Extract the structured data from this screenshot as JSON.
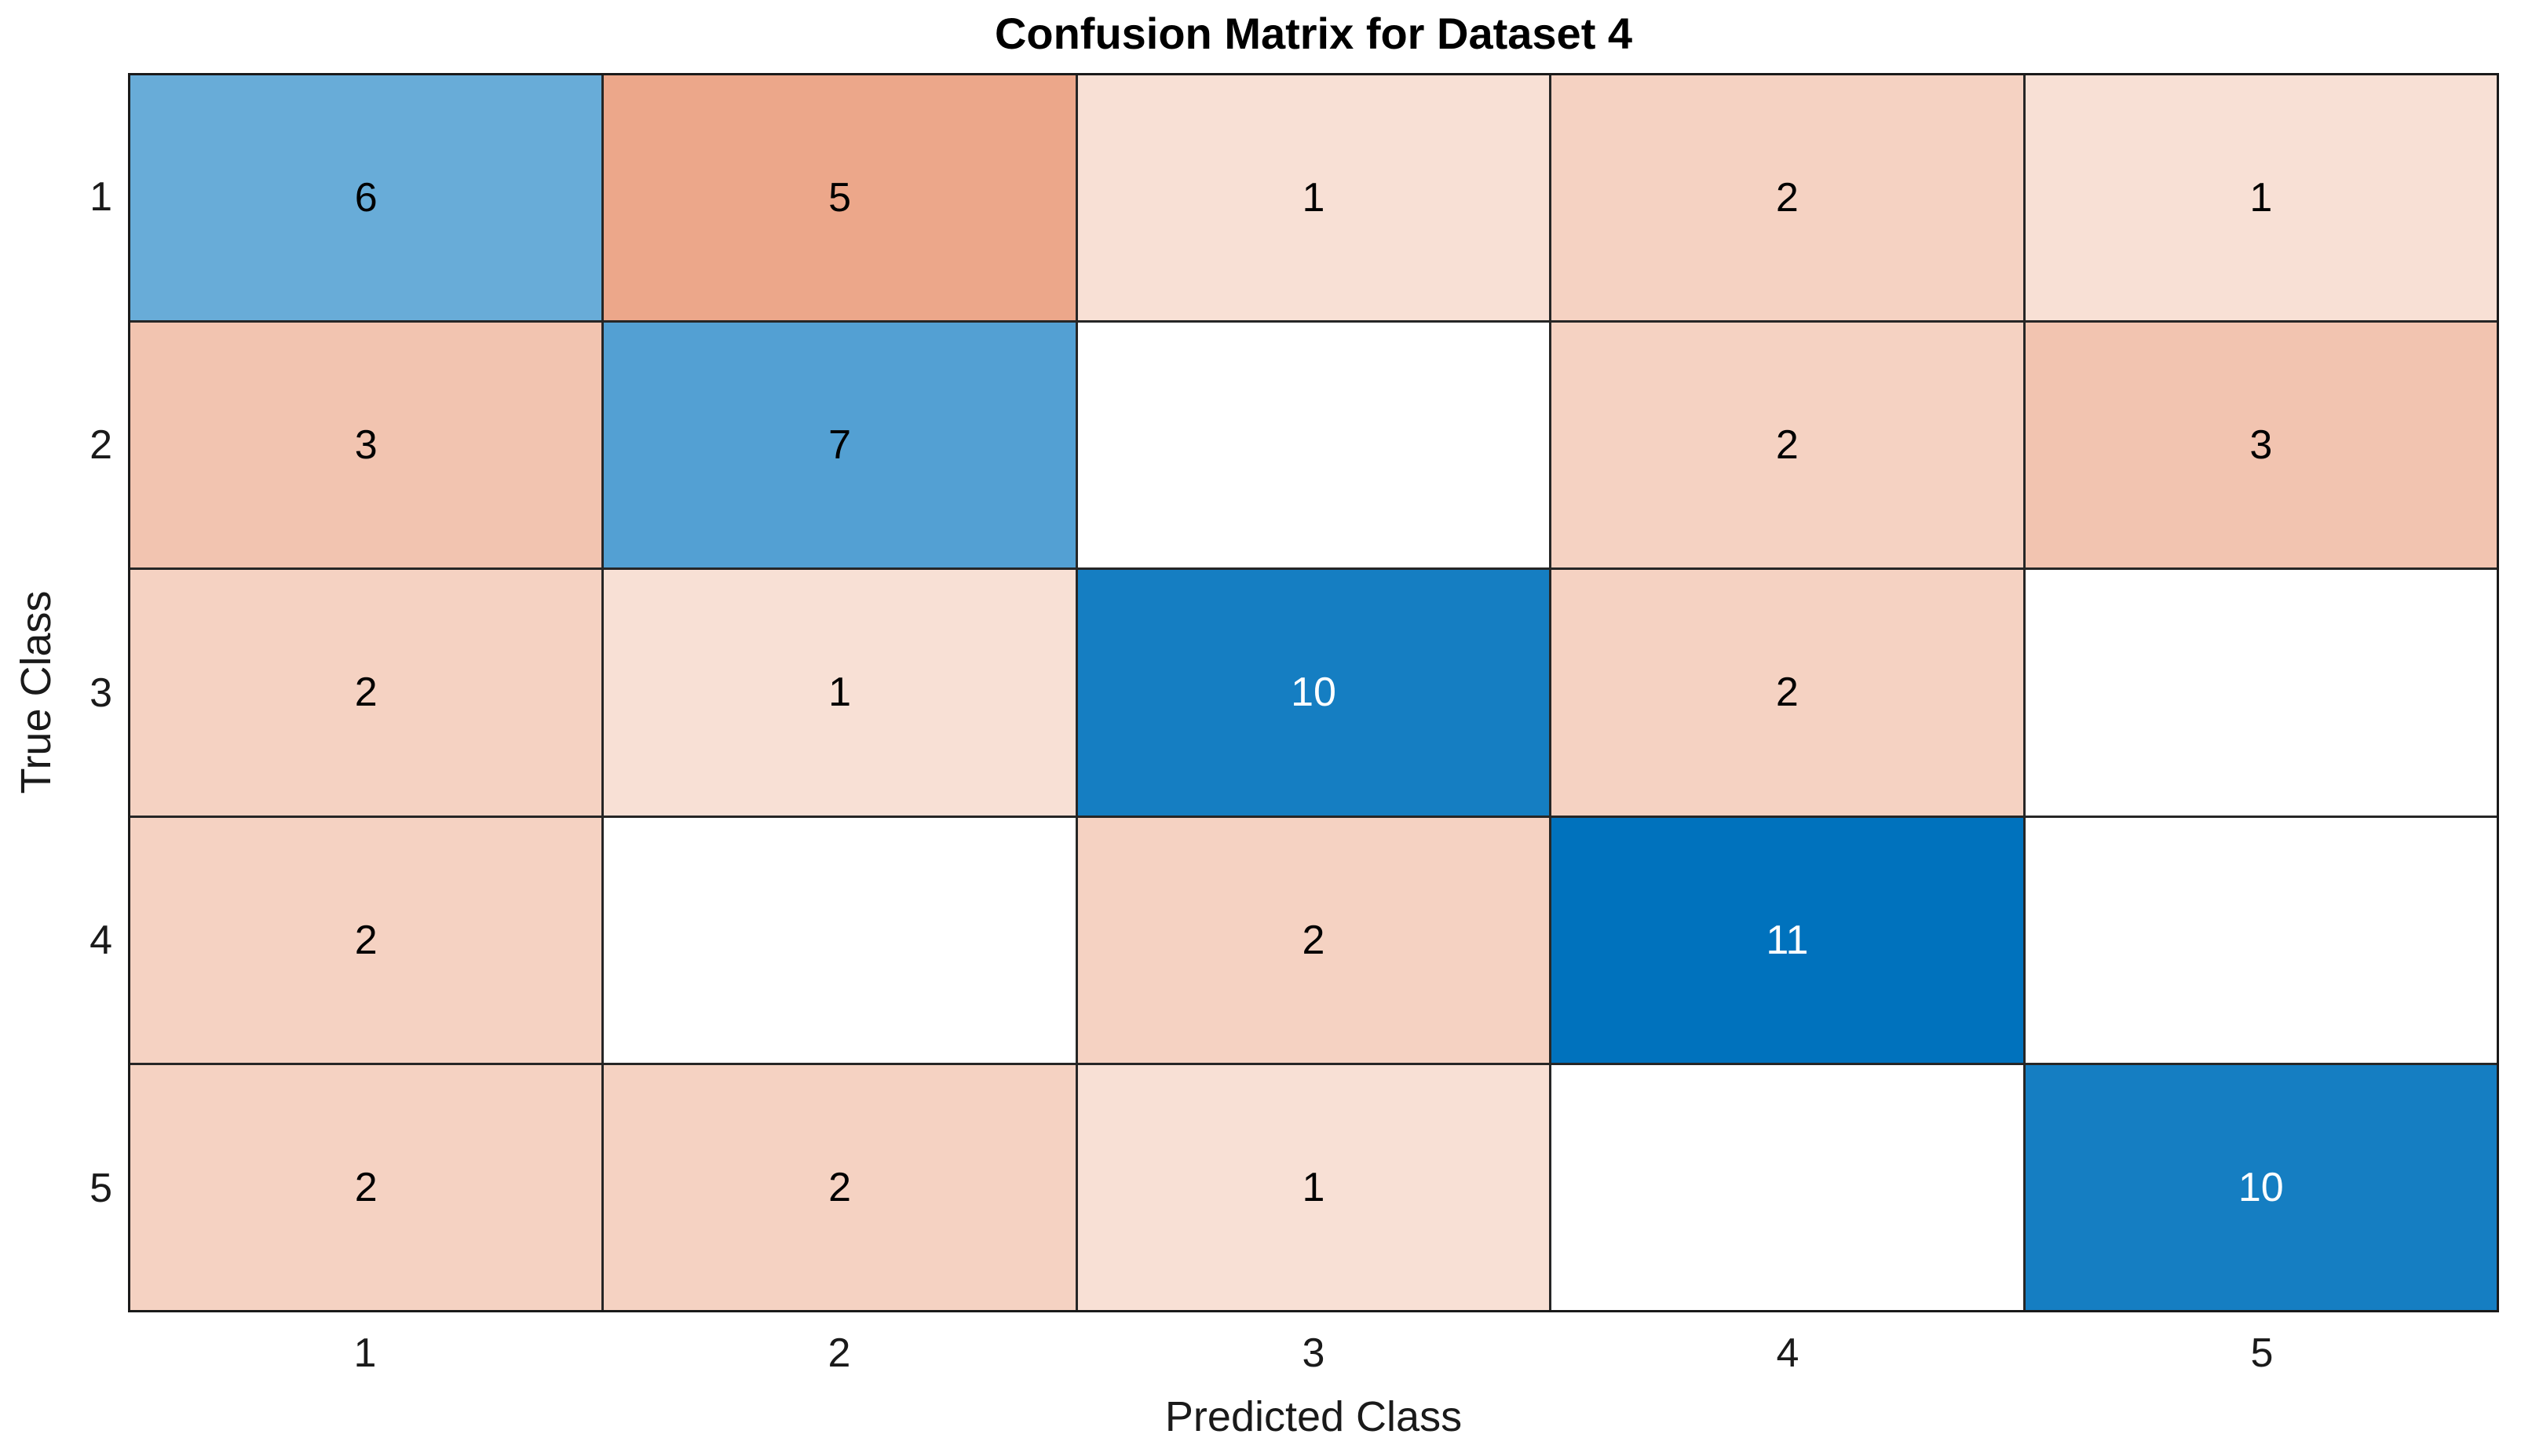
{
  "chart_data": {
    "type": "heatmap",
    "title": "Confusion Matrix for Dataset 4",
    "xlabel": "Predicted Class",
    "ylabel": "True Class",
    "x_tick_labels": [
      "1",
      "2",
      "3",
      "4",
      "5"
    ],
    "y_tick_labels": [
      "1",
      "2",
      "3",
      "4",
      "5"
    ],
    "matrix": [
      [
        6,
        5,
        1,
        2,
        1
      ],
      [
        3,
        7,
        0,
        2,
        3
      ],
      [
        2,
        1,
        10,
        2,
        0
      ],
      [
        2,
        0,
        2,
        11,
        0
      ],
      [
        2,
        2,
        1,
        0,
        10
      ]
    ],
    "zero_cells_blank": true,
    "legend_position": "none",
    "grid_on": true,
    "colors": {
      "diagonal_base": "#0072BD",
      "off_diagonal_base": "#D95319",
      "zero_cell": "#FFFFFF",
      "grid_line": "#262626",
      "axes_border": "#1a1a1a",
      "cell_text_dark": "#000000",
      "cell_text_light": "#FFFFFF"
    },
    "color_scaling": {
      "min_fraction": 0.1,
      "max_value": 11,
      "note": "cell color = white blended toward base color by t = min_fraction + (1-min_fraction)*value/max_value; zero cells are white"
    }
  }
}
